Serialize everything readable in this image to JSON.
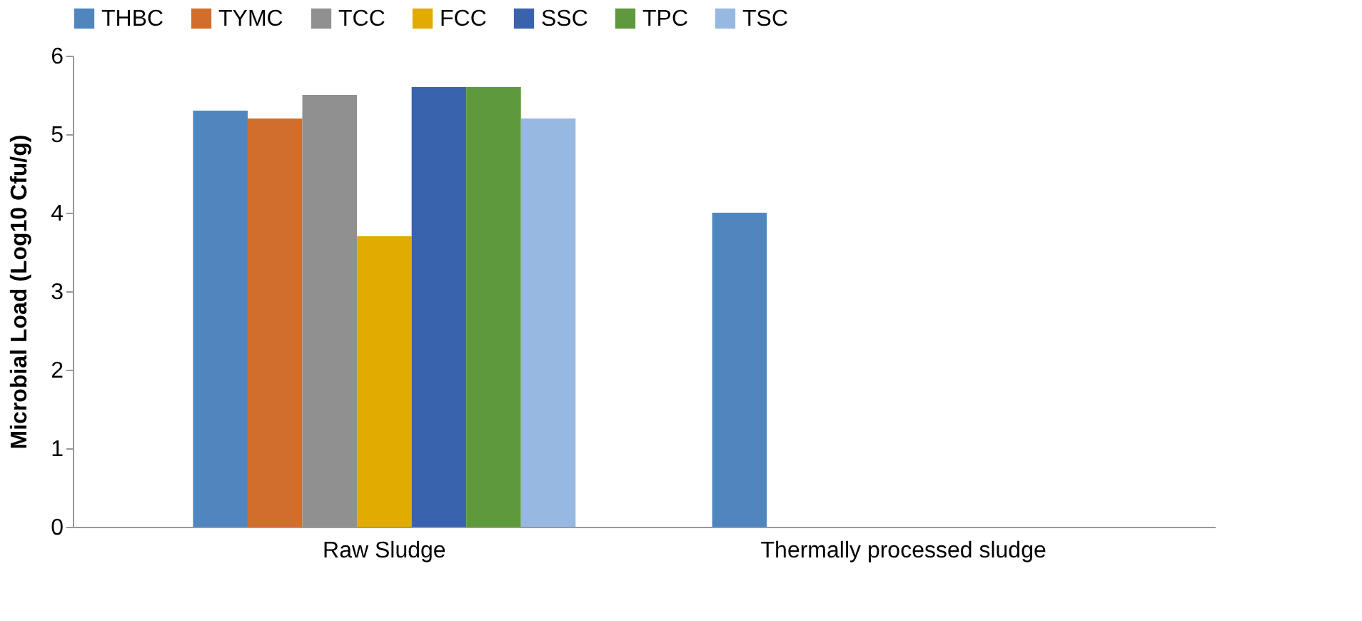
{
  "chart_data": {
    "type": "bar",
    "ylabel": "Microbial Load (Log10 Cfu/g)",
    "categories": [
      "Raw Sludge",
      "Thermally processed sludge"
    ],
    "series": [
      {
        "name": "THBC",
        "color": "#4f86be",
        "values": [
          5.3,
          4.0
        ]
      },
      {
        "name": "TYMC",
        "color": "#d26e2c",
        "values": [
          5.2,
          0
        ]
      },
      {
        "name": "TCC",
        "color": "#909090",
        "values": [
          5.5,
          0
        ]
      },
      {
        "name": "FCC",
        "color": "#e2ab00",
        "values": [
          3.7,
          0
        ]
      },
      {
        "name": "SSC",
        "color": "#3a63ad",
        "values": [
          5.6,
          0
        ]
      },
      {
        "name": "TPC",
        "color": "#5f993e",
        "values": [
          5.6,
          0
        ]
      },
      {
        "name": "TSC",
        "color": "#97b8e0",
        "values": [
          5.2,
          0
        ]
      }
    ],
    "ylim": [
      0,
      6
    ],
    "yticks": [
      0,
      1,
      2,
      3,
      4,
      5,
      6
    ],
    "grid": false,
    "legend": "top"
  }
}
